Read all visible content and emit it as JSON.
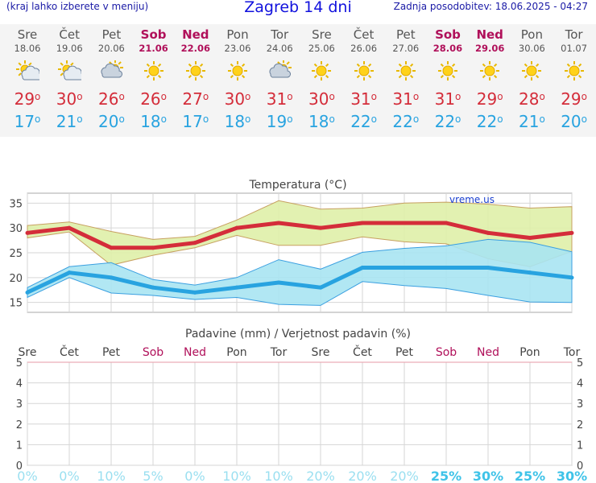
{
  "header": {
    "note": "(kraj lahko izberete v meniju)",
    "title": "Zagreb 14 dni",
    "updated": "Zadnja posodobitev: 18.06.2025 - 04:27"
  },
  "days": [
    {
      "name": "Sre",
      "date": "18.06",
      "weekend": false,
      "icon": "partly-cloudy-icon",
      "max": "29",
      "min": "17",
      "precip_pct": "0%"
    },
    {
      "name": "Čet",
      "date": "19.06",
      "weekend": false,
      "icon": "partly-cloudy-icon",
      "max": "30",
      "min": "21",
      "precip_pct": "0%"
    },
    {
      "name": "Pet",
      "date": "20.06",
      "weekend": false,
      "icon": "cloudy-sun-icon",
      "max": "26",
      "min": "20",
      "precip_pct": "10%"
    },
    {
      "name": "Sob",
      "date": "21.06",
      "weekend": true,
      "icon": "sun-icon",
      "max": "26",
      "min": "18",
      "precip_pct": "5%"
    },
    {
      "name": "Ned",
      "date": "22.06",
      "weekend": true,
      "icon": "sun-icon",
      "max": "27",
      "min": "17",
      "precip_pct": "0%"
    },
    {
      "name": "Pon",
      "date": "23.06",
      "weekend": false,
      "icon": "sun-icon",
      "max": "30",
      "min": "18",
      "precip_pct": "10%"
    },
    {
      "name": "Tor",
      "date": "24.06",
      "weekend": false,
      "icon": "cloudy-sun-icon",
      "max": "31",
      "min": "19",
      "precip_pct": "10%"
    },
    {
      "name": "Sre",
      "date": "25.06",
      "weekend": false,
      "icon": "sun-icon",
      "max": "30",
      "min": "18",
      "precip_pct": "20%"
    },
    {
      "name": "Čet",
      "date": "26.06",
      "weekend": false,
      "icon": "sun-icon",
      "max": "31",
      "min": "22",
      "precip_pct": "20%"
    },
    {
      "name": "Pet",
      "date": "27.06",
      "weekend": false,
      "icon": "sun-icon",
      "max": "31",
      "min": "22",
      "precip_pct": "20%"
    },
    {
      "name": "Sob",
      "date": "28.06",
      "weekend": true,
      "icon": "sun-icon",
      "max": "31",
      "min": "22",
      "precip_pct": "25%"
    },
    {
      "name": "Ned",
      "date": "29.06",
      "weekend": true,
      "icon": "sun-icon",
      "max": "29",
      "min": "22",
      "precip_pct": "30%"
    },
    {
      "name": "Pon",
      "date": "30.06",
      "weekend": false,
      "icon": "sun-icon",
      "max": "28",
      "min": "21",
      "precip_pct": "25%"
    },
    {
      "name": "Tor",
      "date": "01.07",
      "weekend": false,
      "icon": "sun-icon",
      "max": "29",
      "min": "20",
      "precip_pct": "30%"
    }
  ],
  "chart_data": [
    {
      "type": "line",
      "title": "Temperatura (°C)",
      "watermark": "vreme.us",
      "ylim": [
        13,
        37
      ],
      "yticks": [
        15,
        20,
        25,
        30,
        35
      ],
      "x": [
        "18.06",
        "19.06",
        "20.06",
        "21.06",
        "22.06",
        "23.06",
        "24.06",
        "25.06",
        "26.06",
        "27.06",
        "28.06",
        "29.06",
        "30.06",
        "01.07"
      ],
      "series": [
        {
          "kind": "max",
          "color": "#d42d3a",
          "values": [
            29,
            30,
            26,
            26,
            27,
            30,
            31,
            30,
            31,
            31,
            31,
            29,
            28,
            29
          ]
        },
        {
          "kind": "min",
          "color": "#28a3e0",
          "values": [
            17,
            21,
            20,
            18,
            17,
            18,
            19,
            18,
            22,
            22,
            22,
            22,
            21,
            20
          ]
        },
        {
          "kind": "max-range",
          "color": "#dff0a8",
          "upper": [
            30.5,
            31.2,
            29.3,
            27.7,
            28.3,
            31.6,
            35.5,
            33.8,
            34.0,
            35.0,
            35.2,
            34.8,
            34.0,
            34.3
          ],
          "lower": [
            28.0,
            29.2,
            22.5,
            24.5,
            26.0,
            28.5,
            26.5,
            26.5,
            28.2,
            27.2,
            26.8,
            23.8,
            22.2,
            25.3
          ]
        },
        {
          "kind": "min-range",
          "color": "#a8e4f2",
          "upper": [
            18.0,
            22.2,
            23.0,
            19.6,
            18.5,
            20.0,
            23.6,
            21.7,
            25.1,
            25.9,
            26.4,
            27.7,
            27.1,
            25.2
          ],
          "lower": [
            16.0,
            20.0,
            16.9,
            16.4,
            15.6,
            16.0,
            14.6,
            14.4,
            19.2,
            18.4,
            17.8,
            16.4,
            15.1,
            15.0
          ]
        }
      ]
    },
    {
      "type": "bar",
      "title": "Padavine (mm) / Verjetnost padavin (%)",
      "ylim": [
        0,
        5
      ],
      "yticks": [
        0,
        1,
        2,
        3,
        4,
        5
      ],
      "categories": [
        "Sre",
        "Čet",
        "Pet",
        "Sob",
        "Ned",
        "Pon",
        "Tor",
        "Sre",
        "Čet",
        "Pet",
        "Sob",
        "Ned",
        "Pon",
        "Tor"
      ],
      "precip_mm": [
        0,
        0,
        0,
        0,
        0,
        0,
        0,
        0,
        0,
        0,
        0,
        0,
        0,
        0
      ],
      "probability": [
        "0%",
        "0%",
        "10%",
        "5%",
        "0%",
        "10%",
        "10%",
        "20%",
        "20%",
        "20%",
        "25%",
        "30%",
        "25%",
        "30%"
      ]
    }
  ],
  "colors": {
    "weekend": "#b0105a",
    "max": "#d42d3a",
    "min": "#28a3e0",
    "prob_low": "#9adff0",
    "prob_high": "#3fc3e8"
  }
}
